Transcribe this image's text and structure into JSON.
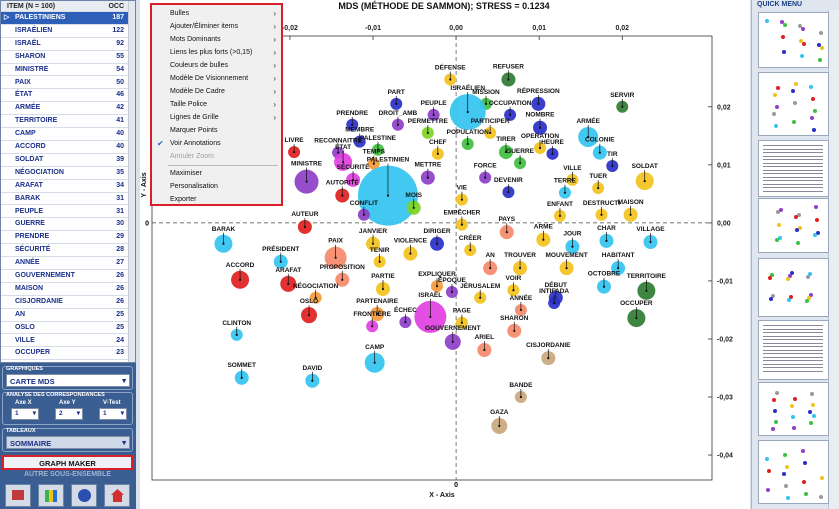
{
  "sidebar": {
    "table": {
      "header": [
        "ITEM (N = 100)",
        "OCC"
      ],
      "rows": [
        [
          "PALESTINIENS",
          "187"
        ],
        [
          "ISRAÉLIEN",
          "122"
        ],
        [
          "ISRAËL",
          "92"
        ],
        [
          "SHARON",
          "55"
        ],
        [
          "MINISTRE",
          "54"
        ],
        [
          "PAIX",
          "50"
        ],
        [
          "ÉTAT",
          "46"
        ],
        [
          "ARMÉE",
          "42"
        ],
        [
          "TERRITOIRE",
          "41"
        ],
        [
          "CAMP",
          "40"
        ],
        [
          "ACCORD",
          "40"
        ],
        [
          "SOLDAT",
          "39"
        ],
        [
          "NÉGOCIATION",
          "35"
        ],
        [
          "ARAFAT",
          "34"
        ],
        [
          "BARAK",
          "31"
        ],
        [
          "PEUPLE",
          "31"
        ],
        [
          "GUERRE",
          "30"
        ],
        [
          "PRENDRE",
          "29"
        ],
        [
          "SÉCURITÉ",
          "28"
        ],
        [
          "ANNÉE",
          "27"
        ],
        [
          "GOUVERNEMENT",
          "26"
        ],
        [
          "MAISON",
          "26"
        ],
        [
          "CISJORDANIE",
          "26"
        ],
        [
          "AN",
          "25"
        ],
        [
          "OSLO",
          "25"
        ],
        [
          "VILLE",
          "24"
        ],
        [
          "OCCUPER",
          "23"
        ]
      ]
    },
    "graphiques": {
      "title": "GRAPHIQUES",
      "value": "CARTE  MDS"
    },
    "analyse": {
      "title": "ANALYSE DES CORRESPONDANCES",
      "fields": [
        {
          "label": "Axe X",
          "value": "1"
        },
        {
          "label": "Axe Y",
          "value": "2"
        },
        {
          "label": "V-Test",
          "value": "1"
        }
      ]
    },
    "tableaux": {
      "title": "TABLEAUX",
      "value": "SOMMAIRE"
    },
    "graph_maker": "GRAPH MAKER",
    "autre": "AUTRE SOUS-ENSEMBLE"
  },
  "context_menu": {
    "items": [
      {
        "label": "Bulles",
        "submenu": true
      },
      {
        "label": "Ajouter/Éliminer items",
        "submenu": true
      },
      {
        "label": "Mots Dominants",
        "submenu": true
      },
      {
        "label": "Liens les plus forts (>0,15)",
        "submenu": true
      },
      {
        "label": "Couleurs de bulles",
        "submenu": true
      },
      {
        "label": "Modèle De Visionnement",
        "submenu": true
      },
      {
        "label": "Modèle De Cadre",
        "submenu": true
      },
      {
        "label": "Taille Police",
        "submenu": true
      },
      {
        "label": "Lignes de Grille",
        "submenu": true
      },
      {
        "label": "Marquer Points"
      },
      {
        "label": "Voir Annotations",
        "checked": true
      },
      {
        "label": "Annuler Zoom",
        "disabled": true,
        "separator_after": true
      },
      {
        "label": "Maximiser"
      },
      {
        "label": "Personalisation"
      },
      {
        "label": "Exporter"
      }
    ]
  },
  "quick_menu": {
    "title": "QUICK MENU"
  },
  "chart_data": {
    "type": "scatter",
    "title": "MDS (MÉTHODE DE SAMMON); STRESS = 0.1234",
    "x_label": "X - Axis",
    "y_label": "Y - Axis",
    "xlim": [
      -0.0366,
      0.0308
    ],
    "ylim": [
      -0.0443,
      0.0322
    ],
    "xticks": [
      {
        "value": -0.02,
        "label": "-0,02"
      },
      {
        "value": -0.01,
        "label": "-0,01"
      },
      {
        "value": 0,
        "label": "0,00"
      },
      {
        "value": 0.01,
        "label": "0,01"
      },
      {
        "value": 0.02,
        "label": "0,02"
      }
    ],
    "yticks": [
      {
        "value": 0.02,
        "label": "0,02"
      },
      {
        "value": 0.01,
        "label": "0,01"
      },
      {
        "value": 0,
        "label": "0,00"
      },
      {
        "value": -0.01,
        "label": "-0,01"
      },
      {
        "value": -0.02,
        "label": "-0,02"
      },
      {
        "value": -0.03,
        "label": "-0,03"
      },
      {
        "value": -0.04,
        "label": "-0,04"
      }
    ],
    "zero_lines": {
      "value": 0,
      "label": "0"
    },
    "points": [
      {
        "label": "DÉFENSE",
        "x": -0.0007,
        "y": 0.0247,
        "size": 6,
        "color": "#f2c21b"
      },
      {
        "label": "REFUSER",
        "x": 0.0063,
        "y": 0.0247,
        "size": 7,
        "color": "#2e7d32"
      },
      {
        "label": "PART",
        "x": -0.0072,
        "y": 0.0205,
        "size": 6,
        "color": "#2a2fc9"
      },
      {
        "label": "MISSION",
        "x": 0.0036,
        "y": 0.0205,
        "size": 6,
        "color": "#3fbf3f"
      },
      {
        "label": "RÉPRESSION",
        "x": 0.0099,
        "y": 0.0205,
        "size": 7,
        "color": "#2a2fc9"
      },
      {
        "label": "SERVIR",
        "x": 0.02,
        "y": 0.02,
        "size": 6,
        "color": "#2e7d32"
      },
      {
        "label": "PEUPLE",
        "x": -0.0027,
        "y": 0.0186,
        "size": 6,
        "color": "#8e3fc9"
      },
      {
        "label": "ISRAÉLIEN",
        "x": 0.0014,
        "y": 0.0191,
        "size": 18,
        "color": "#33c4f0"
      },
      {
        "label": "OCCUPATION",
        "x": 0.0065,
        "y": 0.0186,
        "size": 6,
        "color": "#2a2fc9"
      },
      {
        "label": "DROIT_AMB",
        "x": -0.007,
        "y": 0.0169,
        "size": 6,
        "color": "#8e3fc9"
      },
      {
        "label": "PRENDRE",
        "x": -0.0125,
        "y": 0.0169,
        "size": 6,
        "color": "#2a2fc9"
      },
      {
        "label": "PERMETTRE",
        "x": -0.0034,
        "y": 0.0155,
        "size": 6,
        "color": "#7ed321"
      },
      {
        "label": "PARTICIPER",
        "x": 0.0041,
        "y": 0.0155,
        "size": 6,
        "color": "#f2c21b"
      },
      {
        "label": "NOMBRE",
        "x": 0.0101,
        "y": 0.0164,
        "size": 7,
        "color": "#2a2fc9"
      },
      {
        "label": "ARMÉE",
        "x": 0.0159,
        "y": 0.0148,
        "size": 10,
        "color": "#33c4f0"
      },
      {
        "label": "MEMBRE",
        "x": -0.0116,
        "y": 0.014,
        "size": 6,
        "color": "#2a2fc9"
      },
      {
        "label": "POPULATION",
        "x": 0.0014,
        "y": 0.0136,
        "size": 6,
        "color": "#3fbf3f"
      },
      {
        "label": "RECONNAITRE",
        "x": -0.0142,
        "y": 0.0121,
        "size": 6,
        "color": "#8e3fc9"
      },
      {
        "label": "PALESTINE",
        "x": -0.0094,
        "y": 0.0126,
        "size": 6,
        "color": "#3fbf3f"
      },
      {
        "label": "CHEF",
        "x": -0.0022,
        "y": 0.0119,
        "size": 6,
        "color": "#f2c21b"
      },
      {
        "label": "TIRER",
        "x": 0.006,
        "y": 0.0122,
        "size": 7,
        "color": "#3fbf3f"
      },
      {
        "label": "OPERATION",
        "x": 0.0101,
        "y": 0.0129,
        "size": 6,
        "color": "#f2c21b"
      },
      {
        "label": "COLONIE",
        "x": 0.0173,
        "y": 0.0121,
        "size": 7,
        "color": "#33c4f0"
      },
      {
        "label": "LIVRE",
        "x": -0.0195,
        "y": 0.0122,
        "size": 6,
        "color": "#e02020"
      },
      {
        "label": "ÉTAT",
        "x": -0.0136,
        "y": 0.0105,
        "size": 9,
        "color": "#e040e0"
      },
      {
        "label": "TEMPS",
        "x": -0.0099,
        "y": 0.0102,
        "size": 6,
        "color": "#f59a3c"
      },
      {
        "label": "GUERRE",
        "x": 0.0077,
        "y": 0.0103,
        "size": 6,
        "color": "#3fbf3f"
      },
      {
        "label": "HEURE",
        "x": 0.0116,
        "y": 0.0119,
        "size": 6,
        "color": "#2a2fc9"
      },
      {
        "label": "TIR",
        "x": 0.0188,
        "y": 0.0098,
        "size": 6,
        "color": "#2a2fc9"
      },
      {
        "label": "MINISTRE",
        "x": -0.018,
        "y": 0.0071,
        "size": 12,
        "color": "#8e3fc9"
      },
      {
        "label": "METTRE",
        "x": -0.0034,
        "y": 0.0078,
        "size": 7,
        "color": "#8e3fc9"
      },
      {
        "label": "FORCE",
        "x": 0.0035,
        "y": 0.0078,
        "size": 6,
        "color": "#8e3fc9"
      },
      {
        "label": "VILLE",
        "x": 0.014,
        "y": 0.0074,
        "size": 6,
        "color": "#f2c21b"
      },
      {
        "label": "SOLDAT",
        "x": 0.0227,
        "y": 0.0072,
        "size": 9,
        "color": "#f2c21b"
      },
      {
        "label": "SÉCURITÉ",
        "x": -0.0124,
        "y": 0.0074,
        "size": 7,
        "color": "#e040e0"
      },
      {
        "label": "PALESTINIEN",
        "x": -0.0082,
        "y": 0.0047,
        "size": 30,
        "color": "#33c4f0"
      },
      {
        "label": "DEVENIR",
        "x": 0.0063,
        "y": 0.0053,
        "size": 6,
        "color": "#2a2fc9"
      },
      {
        "label": "TERRE",
        "x": 0.0131,
        "y": 0.0052,
        "size": 6,
        "color": "#33c4f0"
      },
      {
        "label": "TUER",
        "x": 0.0171,
        "y": 0.006,
        "size": 6,
        "color": "#f2c21b"
      },
      {
        "label": "AUTORITÉ",
        "x": -0.0137,
        "y": 0.0047,
        "size": 7,
        "color": "#e02020"
      },
      {
        "label": "VIE",
        "x": 0.0007,
        "y": 0.004,
        "size": 6,
        "color": "#f2c21b"
      },
      {
        "label": "MOIS",
        "x": -0.0051,
        "y": 0.0026,
        "size": 7,
        "color": "#7ed321"
      },
      {
        "label": "ENFANT",
        "x": 0.0125,
        "y": 0.0012,
        "size": 6,
        "color": "#f2c21b"
      },
      {
        "label": "MAISON",
        "x": 0.021,
        "y": 0.0014,
        "size": 7,
        "color": "#f2c21b"
      },
      {
        "label": "DESTRUCTI",
        "x": 0.0175,
        "y": 0.0014,
        "size": 6,
        "color": "#f2c21b"
      },
      {
        "label": "CONFLIT",
        "x": -0.0111,
        "y": 0.0014,
        "size": 6,
        "color": "#8e3fc9"
      },
      {
        "label": "EMPÊCHER",
        "x": 0.0007,
        "y": -0.0003,
        "size": 6,
        "color": "#f2c21b"
      },
      {
        "label": "AUTEUR",
        "x": -0.0182,
        "y": -0.0007,
        "size": 7,
        "color": "#e02020"
      },
      {
        "label": "PAYS",
        "x": 0.0061,
        "y": -0.0016,
        "size": 7,
        "color": "#f58a6a"
      },
      {
        "label": "BARAK",
        "x": -0.028,
        "y": -0.0036,
        "size": 9,
        "color": "#33c4f0"
      },
      {
        "label": "ARME",
        "x": 0.0105,
        "y": -0.0029,
        "size": 7,
        "color": "#f2c21b"
      },
      {
        "label": "JOUR",
        "x": 0.014,
        "y": -0.0041,
        "size": 7,
        "color": "#33c4f0"
      },
      {
        "label": "CHAR",
        "x": 0.0181,
        "y": -0.0031,
        "size": 7,
        "color": "#33c4f0"
      },
      {
        "label": "VILLAGE",
        "x": 0.0234,
        "y": -0.0033,
        "size": 7,
        "color": "#33c4f0"
      },
      {
        "label": "JANVIER",
        "x": -0.01,
        "y": -0.0036,
        "size": 7,
        "color": "#f2c21b"
      },
      {
        "label": "DIRIGER",
        "x": -0.0023,
        "y": -0.0036,
        "size": 7,
        "color": "#2a2fc9"
      },
      {
        "label": "CRÉER",
        "x": 0.0017,
        "y": -0.0047,
        "size": 6,
        "color": "#f2c21b"
      },
      {
        "label": "PRÉSIDENT",
        "x": -0.0211,
        "y": -0.0067,
        "size": 7,
        "color": "#33c4f0"
      },
      {
        "label": "PAIX",
        "x": -0.0145,
        "y": -0.006,
        "size": 11,
        "color": "#f58a6a"
      },
      {
        "label": "TENIR",
        "x": -0.0092,
        "y": -0.0067,
        "size": 6,
        "color": "#f2c21b"
      },
      {
        "label": "VIOLENCE",
        "x": -0.0055,
        "y": -0.0053,
        "size": 7,
        "color": "#f2c21b"
      },
      {
        "label": "AN",
        "x": 0.0041,
        "y": -0.0078,
        "size": 7,
        "color": "#f58a6a"
      },
      {
        "label": "TROUVER",
        "x": 0.0077,
        "y": -0.0078,
        "size": 7,
        "color": "#f2c21b"
      },
      {
        "label": "MOUVEMENT",
        "x": 0.0133,
        "y": -0.0078,
        "size": 7,
        "color": "#f2c21b"
      },
      {
        "label": "HABITANT",
        "x": 0.0195,
        "y": -0.0078,
        "size": 7,
        "color": "#33c4f0"
      },
      {
        "label": "ACCORD",
        "x": -0.026,
        "y": -0.0098,
        "size": 9,
        "color": "#e02020"
      },
      {
        "label": "ARAFAT",
        "x": -0.0202,
        "y": -0.0105,
        "size": 8,
        "color": "#e02020"
      },
      {
        "label": "PROPOSITION",
        "x": -0.0137,
        "y": -0.0098,
        "size": 7,
        "color": "#f58a6a"
      },
      {
        "label": "PARTIE",
        "x": -0.0088,
        "y": -0.0114,
        "size": 7,
        "color": "#f2c21b"
      },
      {
        "label": "EXPLIQUER",
        "x": -0.0023,
        "y": -0.0109,
        "size": 6,
        "color": "#f59a3c"
      },
      {
        "label": "ÉPOQUE",
        "x": -0.0005,
        "y": -0.0119,
        "size": 6,
        "color": "#8e3fc9"
      },
      {
        "label": "VOIR",
        "x": 0.0069,
        "y": -0.0116,
        "size": 6,
        "color": "#f2c21b"
      },
      {
        "label": "DÉBUT",
        "x": 0.012,
        "y": -0.0129,
        "size": 7,
        "color": "#2a2fc9"
      },
      {
        "label": "OCTOBRE",
        "x": 0.0178,
        "y": -0.011,
        "size": 7,
        "color": "#33c4f0"
      },
      {
        "label": "TERRITOIRE",
        "x": 0.0229,
        "y": -0.0117,
        "size": 9,
        "color": "#2e7d32"
      },
      {
        "label": "NÉGOCIATION",
        "x": -0.0169,
        "y": -0.0129,
        "size": 6,
        "color": "#f59a3c"
      },
      {
        "label": "JÉRUSALEM",
        "x": 0.0029,
        "y": -0.0129,
        "size": 6,
        "color": "#f2c21b"
      },
      {
        "label": "INTIFADA",
        "x": 0.0118,
        "y": -0.0138,
        "size": 6,
        "color": "#2a2fc9"
      },
      {
        "label": "OSLO",
        "x": -0.0177,
        "y": -0.0159,
        "size": 8,
        "color": "#e02020"
      },
      {
        "label": "PARTENAIRE",
        "x": -0.0095,
        "y": -0.0157,
        "size": 7,
        "color": "#f59a3c"
      },
      {
        "label": "ISRAËL",
        "x": -0.0031,
        "y": -0.0162,
        "size": 16,
        "color": "#e040e0"
      },
      {
        "label": "ANNÉE",
        "x": 0.0078,
        "y": -0.015,
        "size": 6,
        "color": "#f58a6a"
      },
      {
        "label": "OCCUPER",
        "x": 0.0217,
        "y": -0.0164,
        "size": 9,
        "color": "#2e7d32"
      },
      {
        "label": "FRONTIÈRE",
        "x": -0.0101,
        "y": -0.0178,
        "size": 6,
        "color": "#e040e0"
      },
      {
        "label": "ÉCHEC",
        "x": -0.0061,
        "y": -0.0171,
        "size": 6,
        "color": "#8e3fc9"
      },
      {
        "label": "PAGE",
        "x": 0.0007,
        "y": -0.0172,
        "size": 6,
        "color": "#f2c21b"
      },
      {
        "label": "SHARON",
        "x": 0.007,
        "y": -0.0186,
        "size": 7,
        "color": "#f58a6a"
      },
      {
        "label": "CLINTON",
        "x": -0.0264,
        "y": -0.0193,
        "size": 6,
        "color": "#33c4f0"
      },
      {
        "label": "GOUVERNEMENT",
        "x": -0.0004,
        "y": -0.0205,
        "size": 8,
        "color": "#8e3fc9"
      },
      {
        "label": "ARIEL",
        "x": 0.0034,
        "y": -0.0219,
        "size": 7,
        "color": "#f58a6a"
      },
      {
        "label": "CISJORDANIE",
        "x": 0.0111,
        "y": -0.0233,
        "size": 7,
        "color": "#c9a77c"
      },
      {
        "label": "CAMP",
        "x": -0.0098,
        "y": -0.0241,
        "size": 10,
        "color": "#33c4f0"
      },
      {
        "label": "SOMMET",
        "x": -0.0258,
        "y": -0.0267,
        "size": 7,
        "color": "#33c4f0"
      },
      {
        "label": "DAVID",
        "x": -0.0173,
        "y": -0.0272,
        "size": 7,
        "color": "#33c4f0"
      },
      {
        "label": "BANDE",
        "x": 0.0078,
        "y": -0.03,
        "size": 6,
        "color": "#c9a77c"
      },
      {
        "label": "GAZA",
        "x": 0.0052,
        "y": -0.035,
        "size": 8,
        "color": "#c9a77c"
      }
    ]
  }
}
